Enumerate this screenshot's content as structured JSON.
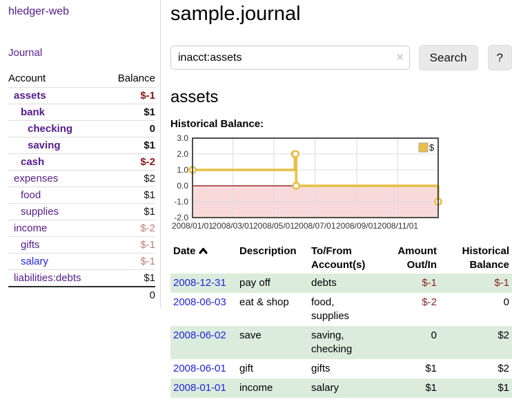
{
  "app": {
    "brand": "hledger-web"
  },
  "sidebar": {
    "journal_link": "Journal",
    "accounts_table": {
      "col_account": "Account",
      "col_balance": "Balance",
      "rows": [
        {
          "account": "assets",
          "balance": "$-1",
          "indent": 0,
          "bold": true,
          "tone": "neg-strong",
          "link": "purple"
        },
        {
          "account": "bank",
          "balance": "$1",
          "indent": 1,
          "bold": true,
          "tone": "pos",
          "link": "purple"
        },
        {
          "account": "checking",
          "balance": "0",
          "indent": 2,
          "bold": true,
          "tone": "pos",
          "link": "purple"
        },
        {
          "account": "saving",
          "balance": "$1",
          "indent": 2,
          "bold": true,
          "tone": "pos",
          "link": "purple"
        },
        {
          "account": "cash",
          "balance": "$-2",
          "indent": 1,
          "bold": true,
          "tone": "neg-strong",
          "link": "purple"
        },
        {
          "account": "expenses",
          "balance": "$2",
          "indent": 0,
          "bold": false,
          "tone": "pos",
          "link": "purple"
        },
        {
          "account": "food",
          "balance": "$1",
          "indent": 1,
          "bold": false,
          "tone": "pos",
          "link": "purple"
        },
        {
          "account": "supplies",
          "balance": "$1",
          "indent": 1,
          "bold": false,
          "tone": "pos",
          "link": "purple"
        },
        {
          "account": "income",
          "balance": "$-2",
          "indent": 0,
          "bold": false,
          "tone": "neg-soft",
          "link": "purple"
        },
        {
          "account": "gifts",
          "balance": "$-1",
          "indent": 1,
          "bold": false,
          "tone": "neg-soft",
          "link": "purple"
        },
        {
          "account": "salary",
          "balance": "$-1",
          "indent": 1,
          "bold": false,
          "tone": "neg-soft",
          "link": "blue"
        },
        {
          "account": "liabilities:debts",
          "balance": "$1",
          "indent": 0,
          "bold": false,
          "tone": "pos",
          "link": "purple"
        }
      ],
      "total": "0"
    }
  },
  "main": {
    "title": "sample.journal",
    "search": {
      "value": "inacct:assets",
      "clear": "×",
      "search_button": "Search",
      "help_button": "?"
    },
    "heading": "assets",
    "chart_heading": "Historical Balance:"
  },
  "chart_data": {
    "type": "line",
    "title": "Historical Balance",
    "step": true,
    "series": [
      {
        "name": "$",
        "color": "#e8bf45",
        "points": [
          [
            "2008-01-01",
            1
          ],
          [
            "2008-06-01",
            2
          ],
          [
            "2008-06-02",
            2
          ],
          [
            "2008-06-03",
            0
          ],
          [
            "2008-12-31",
            -1
          ]
        ]
      }
    ],
    "x_range": [
      "2008-01-01",
      "2008-12-31"
    ],
    "ylim": [
      -2,
      3
    ],
    "yticks": [
      3.0,
      2.0,
      1.0,
      0.0,
      -1.0,
      -2.0
    ],
    "xticks": [
      "2008/01/01",
      "2008/03/01",
      "2008/05/01",
      "2008/07/01",
      "2008/09/01",
      "2008/11/01"
    ],
    "grid": true,
    "legend_position": "top-right",
    "zero_line_color": "#8b0000",
    "negative_region_color": "#f9dada"
  },
  "transactions": {
    "headers": {
      "date": "Date",
      "description": "Description",
      "accounts_1": "To/From",
      "accounts_2": "Account(s)",
      "amount_1": "Amount",
      "amount_2": "Out/In",
      "balance_1": "Historical",
      "balance_2": "Balance"
    },
    "rows": [
      {
        "date": "2008-12-31",
        "description": "pay off",
        "accounts": "debts",
        "amount": "$-1",
        "amount_negative": true,
        "balance": "$-1",
        "balance_negative": true
      },
      {
        "date": "2008-06-03",
        "description": "eat & shop",
        "accounts": "food, supplies",
        "amount": "$-2",
        "amount_negative": true,
        "balance": "0",
        "balance_negative": false
      },
      {
        "date": "2008-06-02",
        "description": "save",
        "accounts": "saving, checking",
        "amount": "0",
        "amount_negative": false,
        "balance": "$2",
        "balance_negative": false
      },
      {
        "date": "2008-06-01",
        "description": "gift",
        "accounts": "gifts",
        "amount": "$1",
        "amount_negative": false,
        "balance": "$2",
        "balance_negative": false
      },
      {
        "date": "2008-01-01",
        "description": "income",
        "accounts": "salary",
        "amount": "$1",
        "amount_negative": false,
        "balance": "$1",
        "balance_negative": false
      }
    ]
  }
}
